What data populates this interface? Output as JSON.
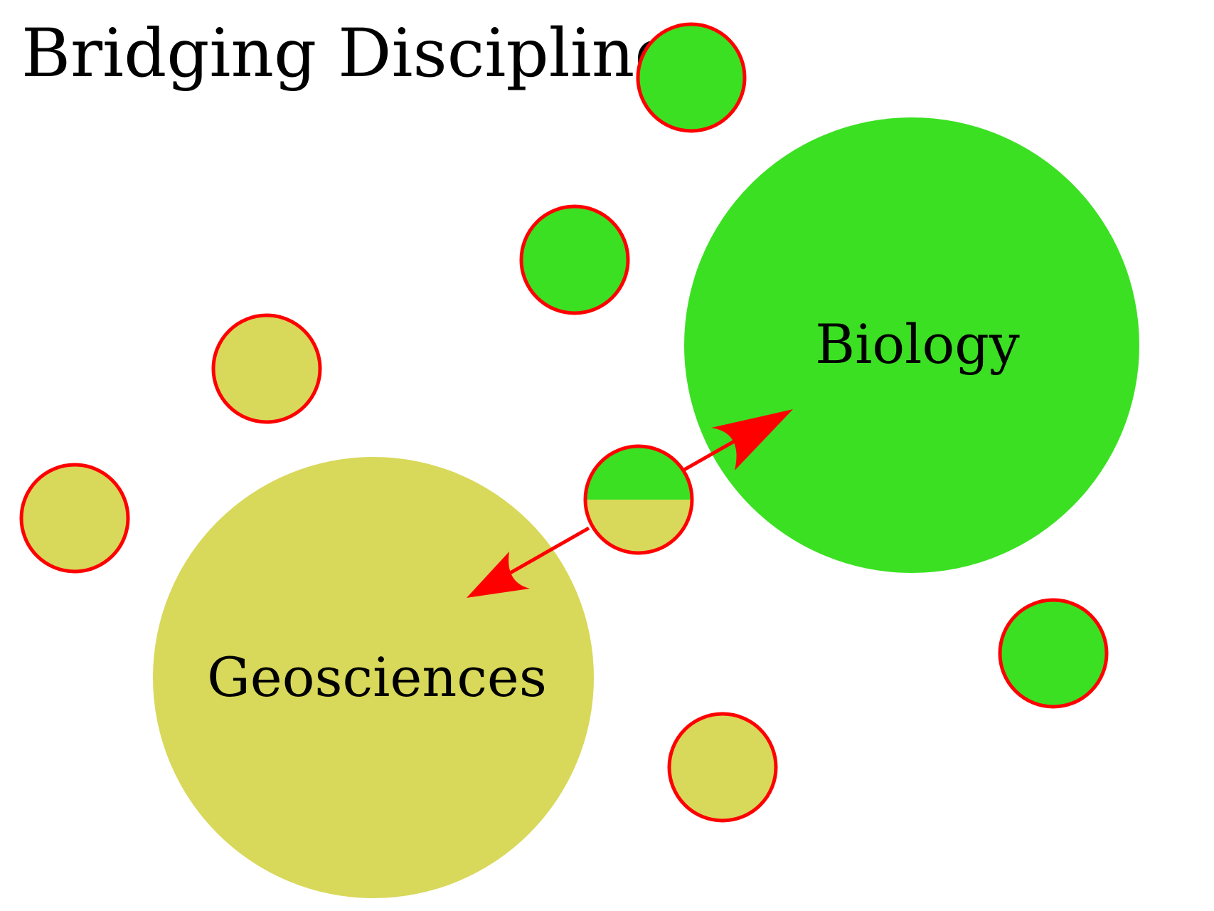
{
  "title": "Bridging Disciplines",
  "disciplines": {
    "biology": {
      "label": "Biology"
    },
    "geosciences": {
      "label": "Geosciences"
    }
  },
  "colors": {
    "biology": "#3be022",
    "geosciences": "#d8d85a",
    "outline": "#ff0000",
    "arrow": "#ff0000",
    "text": "#000000"
  }
}
